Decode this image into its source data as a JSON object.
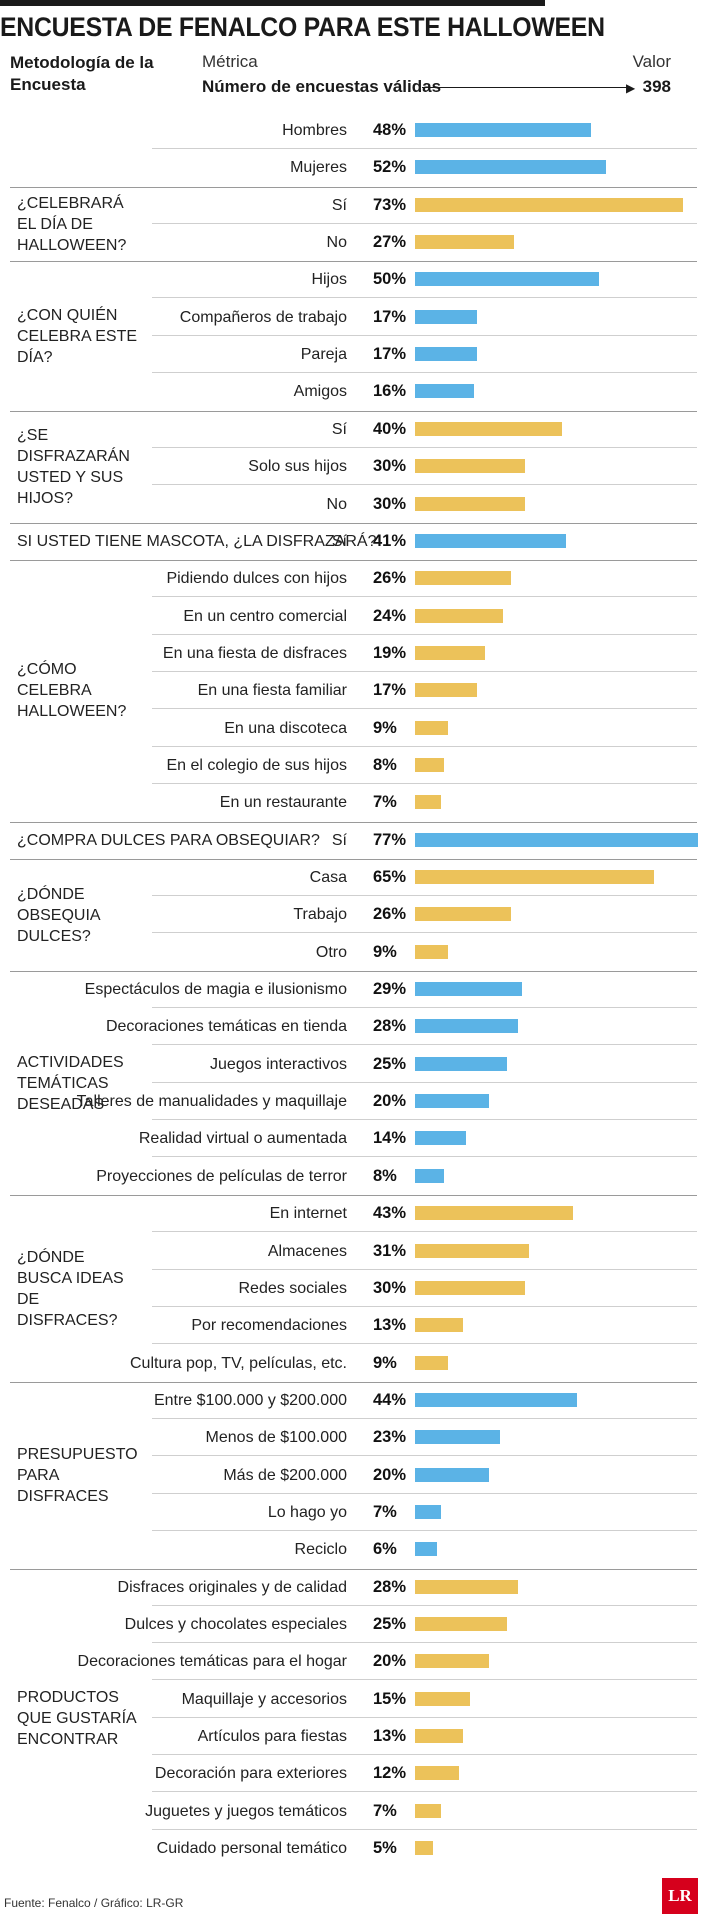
{
  "title": "ENCUESTA DE FENALCO PARA ESTE HALLOWEEN",
  "header": {
    "methodology": "Metodología de la Encuesta",
    "metric_label": "Métrica",
    "metric_name": "Número de encuestas válidas",
    "value_label": "Valor",
    "value": "398"
  },
  "colors": {
    "blue": "#5bb3e6",
    "yellow": "#ecc25a"
  },
  "chart_data": {
    "type": "bar",
    "orientation": "horizontal",
    "unit": "%",
    "xlim": [
      0,
      77
    ],
    "title": "ENCUESTA DE FENALCO PARA ESTE HALLOWEEN",
    "groups": [
      {
        "question": "",
        "items": [
          {
            "label": "Hombres",
            "value": 48,
            "color": "blue"
          },
          {
            "label": "Mujeres",
            "value": 52,
            "color": "blue"
          }
        ]
      },
      {
        "question": "¿CELEBRARÁ EL DÍA DE HALLOWEEN?",
        "items": [
          {
            "label": "Sí",
            "value": 73,
            "color": "yellow"
          },
          {
            "label": "No",
            "value": 27,
            "color": "yellow"
          }
        ]
      },
      {
        "question": "¿CON QUIÉN CELEBRA ESTE DÍA?",
        "items": [
          {
            "label": "Hijos",
            "value": 50,
            "color": "blue"
          },
          {
            "label": "Compañeros de trabajo",
            "value": 17,
            "color": "blue"
          },
          {
            "label": "Pareja",
            "value": 17,
            "color": "blue"
          },
          {
            "label": "Amigos",
            "value": 16,
            "color": "blue"
          }
        ]
      },
      {
        "question": "¿SE DISFRAZARÁN USTED Y SUS HIJOS?",
        "items": [
          {
            "label": "Sí",
            "value": 40,
            "color": "yellow"
          },
          {
            "label": "Solo sus hijos",
            "value": 30,
            "color": "yellow"
          },
          {
            "label": "No",
            "value": 30,
            "color": "yellow"
          }
        ]
      },
      {
        "question": "SI USTED TIENE MASCOTA, ¿LA DISFRAZARÁ?",
        "inline": true,
        "items": [
          {
            "label": "Sí",
            "value": 41,
            "color": "blue"
          }
        ]
      },
      {
        "question": "¿CÓMO CELEBRA HALLOWEEN?",
        "items": [
          {
            "label": "Pidiendo dulces con hijos",
            "value": 26,
            "color": "yellow"
          },
          {
            "label": "En un centro comercial",
            "value": 24,
            "color": "yellow"
          },
          {
            "label": "En una fiesta de disfraces",
            "value": 19,
            "color": "yellow"
          },
          {
            "label": "En una fiesta familiar",
            "value": 17,
            "color": "yellow"
          },
          {
            "label": "En una discoteca",
            "value": 9,
            "color": "yellow"
          },
          {
            "label": "En el colegio de sus hijos",
            "value": 8,
            "color": "yellow"
          },
          {
            "label": "En un restaurante",
            "value": 7,
            "color": "yellow"
          }
        ]
      },
      {
        "question": "¿COMPRA DULCES PARA OBSEQUIAR?",
        "inline": true,
        "items": [
          {
            "label": "Sí",
            "value": 77,
            "color": "blue"
          }
        ]
      },
      {
        "question": "¿DÓNDE OBSEQUIA DULCES?",
        "items": [
          {
            "label": "Casa",
            "value": 65,
            "color": "yellow"
          },
          {
            "label": "Trabajo",
            "value": 26,
            "color": "yellow"
          },
          {
            "label": "Otro",
            "value": 9,
            "color": "yellow"
          }
        ]
      },
      {
        "question": "ACTIVIDADES TEMÁTICAS DESEADAS",
        "items": [
          {
            "label": "Espectáculos de magia e ilusionismo",
            "value": 29,
            "color": "blue"
          },
          {
            "label": "Decoraciones temáticas en tienda",
            "value": 28,
            "color": "blue"
          },
          {
            "label": "Juegos interactivos",
            "value": 25,
            "color": "blue"
          },
          {
            "label": "Talleres de manualidades y maquillaje",
            "value": 20,
            "color": "blue"
          },
          {
            "label": "Realidad virtual o aumentada",
            "value": 14,
            "color": "blue"
          },
          {
            "label": "Proyecciones de películas de terror",
            "value": 8,
            "color": "blue"
          }
        ]
      },
      {
        "question": "¿DÓNDE BUSCA IDEAS DE DISFRACES?",
        "items": [
          {
            "label": "En internet",
            "value": 43,
            "color": "yellow"
          },
          {
            "label": "Almacenes",
            "value": 31,
            "color": "yellow"
          },
          {
            "label": "Redes sociales",
            "value": 30,
            "color": "yellow"
          },
          {
            "label": "Por recomendaciones",
            "value": 13,
            "color": "yellow"
          },
          {
            "label": "Cultura pop, TV, películas, etc.",
            "value": 9,
            "color": "yellow"
          }
        ]
      },
      {
        "question": "PRESUPUESTO PARA DISFRACES",
        "items": [
          {
            "label": "Entre $100.000 y $200.000",
            "value": 44,
            "color": "blue"
          },
          {
            "label": "Menos de $100.000",
            "value": 23,
            "color": "blue"
          },
          {
            "label": "Más de $200.000",
            "value": 20,
            "color": "blue"
          },
          {
            "label": "Lo hago yo",
            "value": 7,
            "color": "blue"
          },
          {
            "label": "Reciclo",
            "value": 6,
            "color": "blue"
          }
        ]
      },
      {
        "question": "PRODUCTOS QUE GUSTARÍA ENCONTRAR",
        "items": [
          {
            "label": "Disfraces originales y de calidad",
            "value": 28,
            "color": "yellow"
          },
          {
            "label": "Dulces y chocolates especiales",
            "value": 25,
            "color": "yellow"
          },
          {
            "label": "Decoraciones temáticas para el hogar",
            "value": 20,
            "color": "yellow"
          },
          {
            "label": "Maquillaje y accesorios",
            "value": 15,
            "color": "yellow"
          },
          {
            "label": "Artículos para fiestas",
            "value": 13,
            "color": "yellow"
          },
          {
            "label": "Decoración para exteriores",
            "value": 12,
            "color": "yellow"
          },
          {
            "label": "Juguetes y juegos temáticos",
            "value": 7,
            "color": "yellow"
          },
          {
            "label": "Cuidado personal temático",
            "value": 5,
            "color": "yellow"
          }
        ]
      }
    ]
  },
  "footer": {
    "source": "Fuente: Fenalco / Gráfico: LR-GR",
    "logo": "LR"
  }
}
